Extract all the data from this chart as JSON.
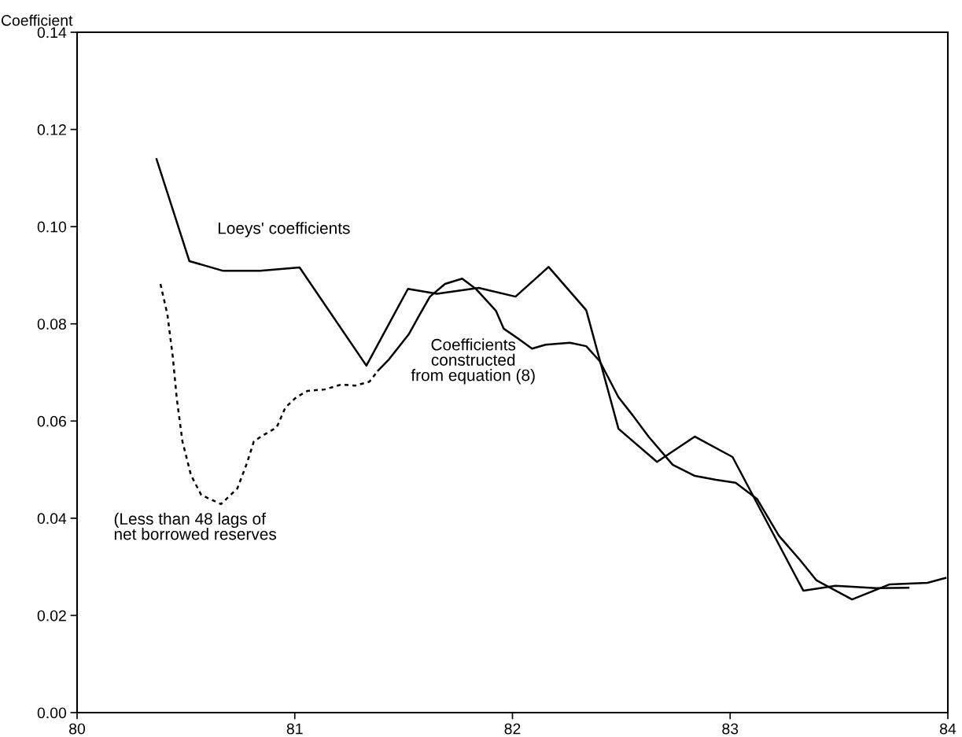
{
  "chart_data": {
    "type": "line",
    "ylabel": "Coefficient",
    "xlim": [
      80,
      84
    ],
    "xticks": [
      80,
      81,
      82,
      83,
      84
    ],
    "ylim": [
      0,
      0.14
    ],
    "yticks": [
      {
        "value": 0,
        "label": "0.00"
      },
      {
        "value": 0.02,
        "label": "0.02"
      },
      {
        "value": 0.04,
        "label": "0.04"
      },
      {
        "value": 0.06,
        "label": "0.06"
      },
      {
        "value": 0.08,
        "label": "0.08"
      },
      {
        "value": 0.1,
        "label": "0.10"
      },
      {
        "value": 0.12,
        "label": "0.12"
      },
      {
        "value": 0.14,
        "label": "0.14"
      }
    ],
    "grid": false,
    "legend": false,
    "marker": "none",
    "series": [
      {
        "color": "#000000",
        "line_style": "solid",
        "x": [
          80.365,
          80.516,
          80.671,
          80.841,
          81.022,
          81.329,
          81.52,
          81.653,
          81.845,
          82.014,
          82.166,
          82.339,
          82.487,
          82.664,
          82.838,
          83.011,
          83.336,
          83.484,
          83.671,
          83.819
        ],
        "values": [
          0.1139,
          0.0929,
          0.0909,
          0.0909,
          0.0916,
          0.0714,
          0.0872,
          0.0862,
          0.0874,
          0.0856,
          0.0917,
          0.0828,
          0.0584,
          0.0516,
          0.0568,
          0.0526,
          0.0251,
          0.0261,
          0.0256,
          0.0257
        ]
      },
      {
        "color": "#000000",
        "line_style": "dotted",
        "x": [
          80.383,
          80.415,
          80.44,
          80.458,
          80.484,
          80.523,
          80.57,
          80.661,
          80.736,
          80.78,
          80.812,
          80.852,
          80.917,
          80.957,
          81.007,
          81.058,
          81.137,
          81.213,
          81.278,
          81.343,
          81.383
        ],
        "values": [
          0.0882,
          0.0819,
          0.0731,
          0.0646,
          0.0558,
          0.0489,
          0.0448,
          0.0429,
          0.0461,
          0.0513,
          0.0558,
          0.057,
          0.0587,
          0.0628,
          0.0649,
          0.0662,
          0.0665,
          0.0675,
          0.0673,
          0.0681,
          0.0704
        ]
      },
      {
        "color": "#000000",
        "line_style": "solid",
        "x": [
          81.383,
          81.433,
          81.523,
          81.574,
          81.621,
          81.69,
          81.769,
          81.834,
          81.924,
          81.96,
          82.025,
          82.09,
          82.152,
          82.264,
          82.339,
          82.401,
          82.487,
          82.552,
          82.625,
          82.736,
          82.838,
          82.935,
          83.025,
          83.123,
          83.224,
          83.321,
          83.397,
          83.56,
          83.733,
          83.906,
          83.989
        ],
        "values": [
          0.0704,
          0.0727,
          0.0778,
          0.0819,
          0.0856,
          0.0882,
          0.0893,
          0.0871,
          0.0827,
          0.079,
          0.077,
          0.0749,
          0.0757,
          0.0761,
          0.0754,
          0.0723,
          0.0649,
          0.0612,
          0.0568,
          0.051,
          0.0487,
          0.0479,
          0.0473,
          0.044,
          0.0364,
          0.0314,
          0.0272,
          0.0233,
          0.0264,
          0.0267,
          0.0277
        ]
      }
    ],
    "annotations": [
      "Loeys' coefficients",
      "Coefficients\nconstructed\nfrom equation (8)",
      "(Less than 48 lags of\nnet borrowed reserves"
    ]
  }
}
